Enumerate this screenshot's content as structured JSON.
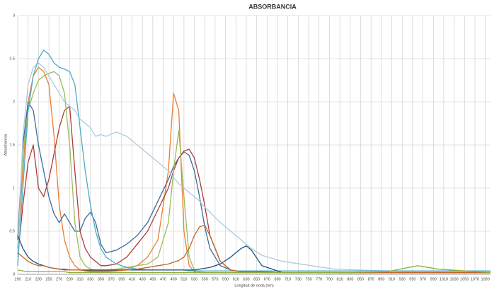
{
  "chart_data": {
    "type": "line",
    "title": "ABSORBANCIA",
    "x_label": "Longitud de onda (nm)",
    "y_label": "Absorbancia",
    "xlim": [
      190,
      1100
    ],
    "ylim": [
      0,
      3
    ],
    "grid": true,
    "xticks": [
      190,
      210,
      230,
      250,
      270,
      290,
      310,
      330,
      350,
      370,
      390,
      410,
      430,
      450,
      470,
      490,
      510,
      530,
      550,
      570,
      590,
      610,
      630,
      650,
      670,
      690,
      710,
      730,
      750,
      770,
      790,
      810,
      830,
      850,
      870,
      890,
      910,
      930,
      950,
      970,
      990,
      1010,
      1030,
      1050,
      1070,
      1090
    ],
    "yticks": [
      0,
      0.5,
      1,
      1.5,
      2,
      2.5,
      3
    ],
    "x": [
      190,
      200,
      210,
      220,
      230,
      240,
      250,
      260,
      270,
      280,
      290,
      300,
      310,
      320,
      330,
      340,
      350,
      360,
      380,
      400,
      420,
      440,
      460,
      480,
      490,
      500,
      510,
      520,
      530,
      540,
      550,
      560,
      580,
      600,
      620,
      630,
      640,
      660,
      700,
      800,
      900,
      960,
      1000,
      1100
    ],
    "series": [
      {
        "color": "#ed7d31",
        "values": [
          0.3,
          1.2,
          2.0,
          2.3,
          2.4,
          2.35,
          2.2,
          1.6,
          0.8,
          0.4,
          0.2,
          0.1,
          0.05,
          0.04,
          0.03,
          0.03,
          0.03,
          0.03,
          0.04,
          0.06,
          0.1,
          0.2,
          0.4,
          1.2,
          2.1,
          1.9,
          0.5,
          0.1,
          0.03,
          0.02,
          0.02,
          0.02,
          0.02,
          0.02,
          0.02,
          0.02,
          0.02,
          0.02,
          0.02,
          0.02,
          0.02,
          0.02,
          0.02,
          0.02
        ]
      },
      {
        "color": "#3e6a9a",
        "values": [
          0.4,
          1.5,
          2.0,
          1.9,
          1.5,
          1.2,
          0.9,
          0.7,
          0.6,
          0.7,
          0.6,
          0.5,
          0.5,
          0.65,
          0.72,
          0.6,
          0.35,
          0.25,
          0.28,
          0.35,
          0.45,
          0.6,
          0.85,
          1.1,
          1.25,
          1.35,
          1.42,
          1.38,
          1.2,
          0.9,
          0.55,
          0.3,
          0.1,
          0.05,
          0.03,
          0.03,
          0.03,
          0.03,
          0.02,
          0.02,
          0.02,
          0.02,
          0.02,
          0.02
        ]
      },
      {
        "color": "#b03a3a",
        "values": [
          0.2,
          0.8,
          1.3,
          1.5,
          1.0,
          0.9,
          1.1,
          1.4,
          1.7,
          1.9,
          1.95,
          1.2,
          0.5,
          0.3,
          0.2,
          0.15,
          0.1,
          0.1,
          0.12,
          0.2,
          0.35,
          0.5,
          0.75,
          1.0,
          1.2,
          1.35,
          1.43,
          1.45,
          1.35,
          1.1,
          0.8,
          0.45,
          0.15,
          0.05,
          0.03,
          0.03,
          0.03,
          0.03,
          0.02,
          0.02,
          0.02,
          0.02,
          0.02,
          0.02
        ]
      },
      {
        "color": "#9bbb59",
        "values": [
          0.3,
          1.4,
          1.9,
          2.1,
          2.25,
          2.3,
          2.33,
          2.35,
          2.3,
          2.1,
          1.5,
          0.6,
          0.2,
          0.1,
          0.06,
          0.05,
          0.05,
          0.05,
          0.06,
          0.08,
          0.1,
          0.12,
          0.2,
          0.6,
          1.2,
          1.67,
          0.9,
          0.2,
          0.05,
          0.03,
          0.02,
          0.02,
          0.02,
          0.02,
          0.02,
          0.02,
          0.02,
          0.02,
          0.02,
          0.02,
          0.02,
          0.02,
          0.02,
          0.02
        ]
      },
      {
        "color": "#a9cde0",
        "values": [
          0.2,
          1.6,
          2.2,
          2.4,
          2.45,
          2.4,
          2.3,
          2.2,
          2.1,
          2.0,
          1.95,
          1.9,
          1.8,
          1.75,
          1.7,
          1.6,
          1.62,
          1.6,
          1.65,
          1.6,
          1.5,
          1.4,
          1.3,
          1.2,
          1.12,
          1.05,
          1.0,
          0.95,
          0.9,
          0.85,
          0.78,
          0.72,
          0.6,
          0.5,
          0.4,
          0.35,
          0.3,
          0.22,
          0.15,
          0.06,
          0.04,
          0.03,
          0.03,
          0.03
        ]
      },
      {
        "color": "#4bacc6",
        "values": [
          0.1,
          1.0,
          1.9,
          2.3,
          2.5,
          2.6,
          2.55,
          2.45,
          2.4,
          2.38,
          2.35,
          2.2,
          1.7,
          1.2,
          0.8,
          0.5,
          0.3,
          0.2,
          0.12,
          0.08,
          0.06,
          0.05,
          0.05,
          0.05,
          0.05,
          0.05,
          0.05,
          0.04,
          0.04,
          0.04,
          0.04,
          0.04,
          0.04,
          0.04,
          0.04,
          0.04,
          0.04,
          0.04,
          0.04,
          0.04,
          0.04,
          0.04,
          0.04,
          0.04
        ]
      },
      {
        "color": "#1f4e79",
        "values": [
          0.45,
          0.3,
          0.2,
          0.15,
          0.12,
          0.1,
          0.08,
          0.07,
          0.06,
          0.06,
          0.05,
          0.05,
          0.05,
          0.05,
          0.05,
          0.05,
          0.05,
          0.05,
          0.05,
          0.05,
          0.05,
          0.05,
          0.05,
          0.05,
          0.05,
          0.05,
          0.05,
          0.05,
          0.05,
          0.06,
          0.07,
          0.08,
          0.12,
          0.2,
          0.3,
          0.33,
          0.28,
          0.1,
          0.02,
          0.02,
          0.02,
          0.02,
          0.02,
          0.02
        ]
      },
      {
        "color": "#c0652a",
        "values": [
          0.25,
          0.2,
          0.15,
          0.12,
          0.1,
          0.1,
          0.08,
          0.07,
          0.06,
          0.05,
          0.05,
          0.05,
          0.05,
          0.04,
          0.04,
          0.04,
          0.04,
          0.04,
          0.04,
          0.05,
          0.06,
          0.08,
          0.1,
          0.12,
          0.14,
          0.16,
          0.2,
          0.3,
          0.45,
          0.55,
          0.57,
          0.45,
          0.15,
          0.05,
          0.03,
          0.03,
          0.03,
          0.02,
          0.02,
          0.02,
          0.02,
          0.02,
          0.02,
          0.02
        ]
      },
      {
        "color": "#8fae3c",
        "values": [
          0.05,
          0.04,
          0.03,
          0.03,
          0.03,
          0.03,
          0.03,
          0.03,
          0.03,
          0.03,
          0.02,
          0.02,
          0.02,
          0.02,
          0.02,
          0.02,
          0.02,
          0.02,
          0.02,
          0.02,
          0.02,
          0.02,
          0.02,
          0.02,
          0.02,
          0.02,
          0.02,
          0.02,
          0.02,
          0.02,
          0.02,
          0.02,
          0.02,
          0.02,
          0.02,
          0.02,
          0.02,
          0.02,
          0.02,
          0.02,
          0.03,
          0.1,
          0.06,
          0.02
        ]
      }
    ]
  }
}
